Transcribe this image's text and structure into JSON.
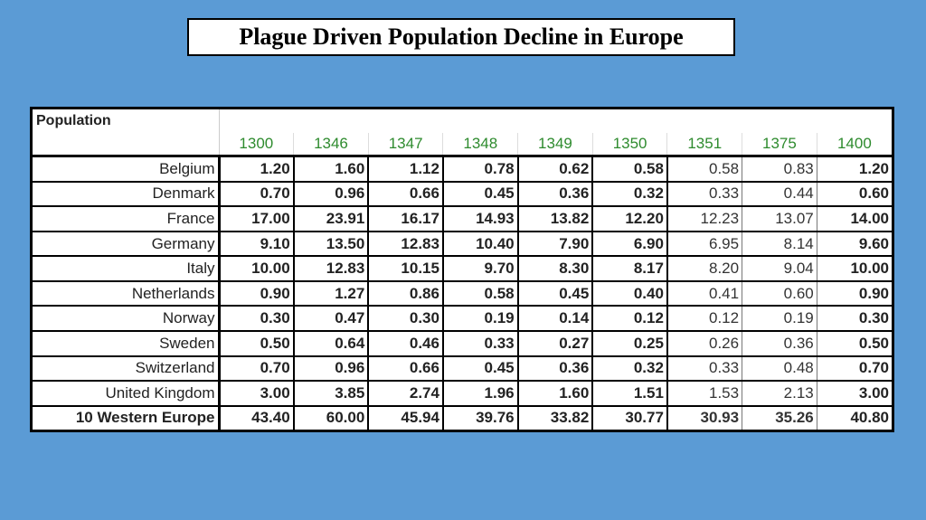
{
  "title": "Plague Driven Population Decline in Europe",
  "table": {
    "corner_label": "Population",
    "years": [
      "1300",
      "1346",
      "1347",
      "1348",
      "1349",
      "1350",
      "1351",
      "1375",
      "1400"
    ],
    "rows": [
      {
        "name": "Belgium",
        "values": [
          "1.20",
          "1.60",
          "1.12",
          "0.78",
          "0.62",
          "0.58",
          "0.58",
          "0.83",
          "1.20"
        ]
      },
      {
        "name": "Denmark",
        "values": [
          "0.70",
          "0.96",
          "0.66",
          "0.45",
          "0.36",
          "0.32",
          "0.33",
          "0.44",
          "0.60"
        ]
      },
      {
        "name": "France",
        "values": [
          "17.00",
          "23.91",
          "16.17",
          "14.93",
          "13.82",
          "12.20",
          "12.23",
          "13.07",
          "14.00"
        ]
      },
      {
        "name": "Germany",
        "values": [
          "9.10",
          "13.50",
          "12.83",
          "10.40",
          "7.90",
          "6.90",
          "6.95",
          "8.14",
          "9.60"
        ]
      },
      {
        "name": "Italy",
        "values": [
          "10.00",
          "12.83",
          "10.15",
          "9.70",
          "8.30",
          "8.17",
          "8.20",
          "9.04",
          "10.00"
        ]
      },
      {
        "name": "Netherlands",
        "values": [
          "0.90",
          "1.27",
          "0.86",
          "0.58",
          "0.45",
          "0.40",
          "0.41",
          "0.60",
          "0.90"
        ]
      },
      {
        "name": "Norway",
        "values": [
          "0.30",
          "0.47",
          "0.30",
          "0.19",
          "0.14",
          "0.12",
          "0.12",
          "0.19",
          "0.30"
        ]
      },
      {
        "name": "Sweden",
        "values": [
          "0.50",
          "0.64",
          "0.46",
          "0.33",
          "0.27",
          "0.25",
          "0.26",
          "0.36",
          "0.50"
        ]
      },
      {
        "name": "Switzerland",
        "values": [
          "0.70",
          "0.96",
          "0.66",
          "0.45",
          "0.36",
          "0.32",
          "0.33",
          "0.48",
          "0.70"
        ]
      },
      {
        "name": "United Kingdom",
        "values": [
          "3.00",
          "3.85",
          "2.74",
          "1.96",
          "1.60",
          "1.51",
          "1.53",
          "2.13",
          "3.00"
        ]
      }
    ],
    "total": {
      "name": "10 Western Europe",
      "values": [
        "43.40",
        "60.00",
        "45.94",
        "39.76",
        "33.82",
        "30.77",
        "30.93",
        "35.26",
        "40.80"
      ]
    }
  },
  "colors": {
    "background": "#5b9bd5",
    "year_header": "#2e8b2e"
  }
}
